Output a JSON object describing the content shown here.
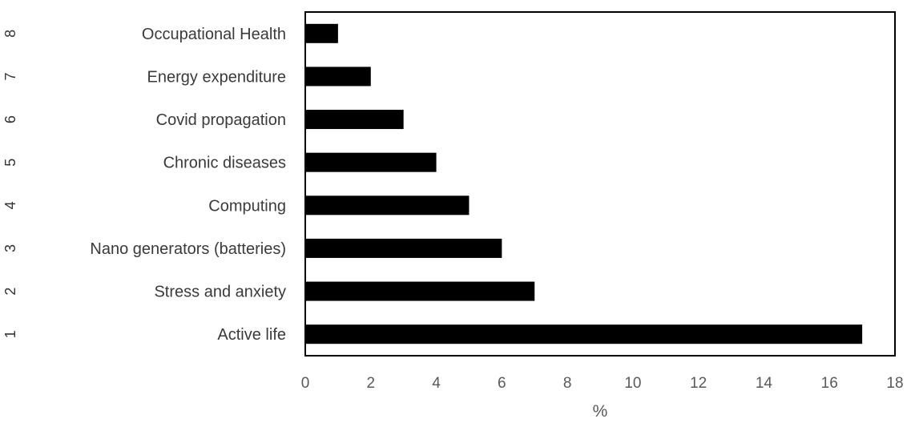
{
  "chart_data": {
    "type": "bar",
    "orientation": "horizontal",
    "categories": [
      "Active life",
      "Stress and anxiety",
      "Nano generators (batteries)",
      "Computing",
      "Chronic diseases",
      "Covid propagation",
      "Energy expenditure",
      "Occupational Health"
    ],
    "category_numbers": [
      "1",
      "2",
      "3",
      "4",
      "5",
      "6",
      "7",
      "8"
    ],
    "values": [
      17,
      7,
      6,
      5,
      4,
      3,
      2,
      1
    ],
    "xlabel": "%",
    "xlim": [
      0,
      18
    ],
    "xticks": [
      0,
      2,
      4,
      6,
      8,
      10,
      12,
      14,
      16,
      18
    ],
    "grid": false,
    "bar_color": "#000000"
  }
}
